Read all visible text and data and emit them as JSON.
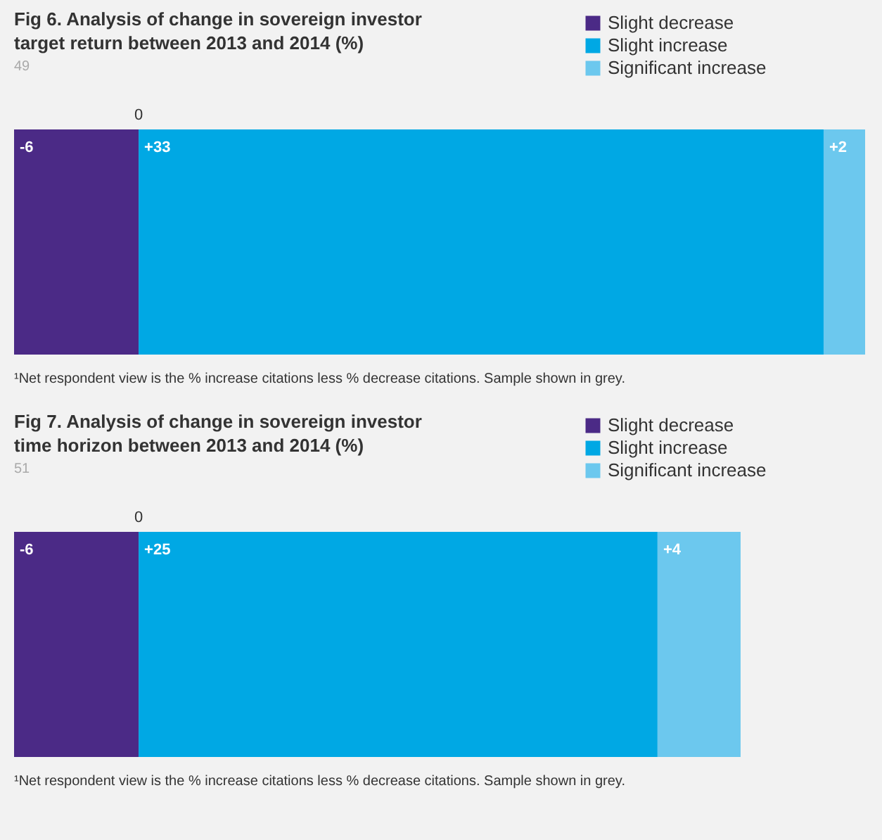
{
  "chart_data": [
    {
      "type": "bar",
      "orientation": "horizontal",
      "stacked": true,
      "title": "Fig 6. Analysis of change in sovereign investor target return between 2013 and 2014 (%)",
      "subtitle": "49",
      "categories": [
        null
      ],
      "series": [
        {
          "name": "Slight decrease",
          "color": "#4b2a86",
          "values": [
            -6
          ],
          "value_labels": [
            "-6"
          ]
        },
        {
          "name": "Slight increase",
          "color": "#00a8e4",
          "values": [
            33
          ],
          "value_labels": [
            "+33"
          ]
        },
        {
          "name": "Significant increase",
          "color": "#6cc8ee",
          "values": [
            2
          ],
          "value_labels": [
            "+2"
          ]
        }
      ],
      "xlim": [
        -6,
        35
      ],
      "legend": "top right",
      "annotations": [
        "0",
        "¹Net respondent view is the % increase citations less % decrease citations. Sample shown in grey."
      ]
    },
    {
      "type": "bar",
      "orientation": "horizontal",
      "stacked": true,
      "title": "Fig 7. Analysis of change in sovereign investor time horizon between 2013 and 2014 (%)",
      "subtitle": "51",
      "categories": [
        null
      ],
      "series": [
        {
          "name": "Slight decrease",
          "color": "#4b2a86",
          "values": [
            -6
          ],
          "value_labels": [
            "-6"
          ]
        },
        {
          "name": "Slight increase",
          "color": "#00a8e4",
          "values": [
            25
          ],
          "value_labels": [
            "+25"
          ]
        },
        {
          "name": "Significant increase",
          "color": "#6cc8ee",
          "values": [
            4
          ],
          "value_labels": [
            "+4"
          ]
        }
      ],
      "xlim": [
        -6,
        35
      ],
      "legend": "top right",
      "annotations": [
        "0",
        "¹Net respondent view is the % increase citations less % decrease citations. Sample shown in grey."
      ]
    }
  ]
}
